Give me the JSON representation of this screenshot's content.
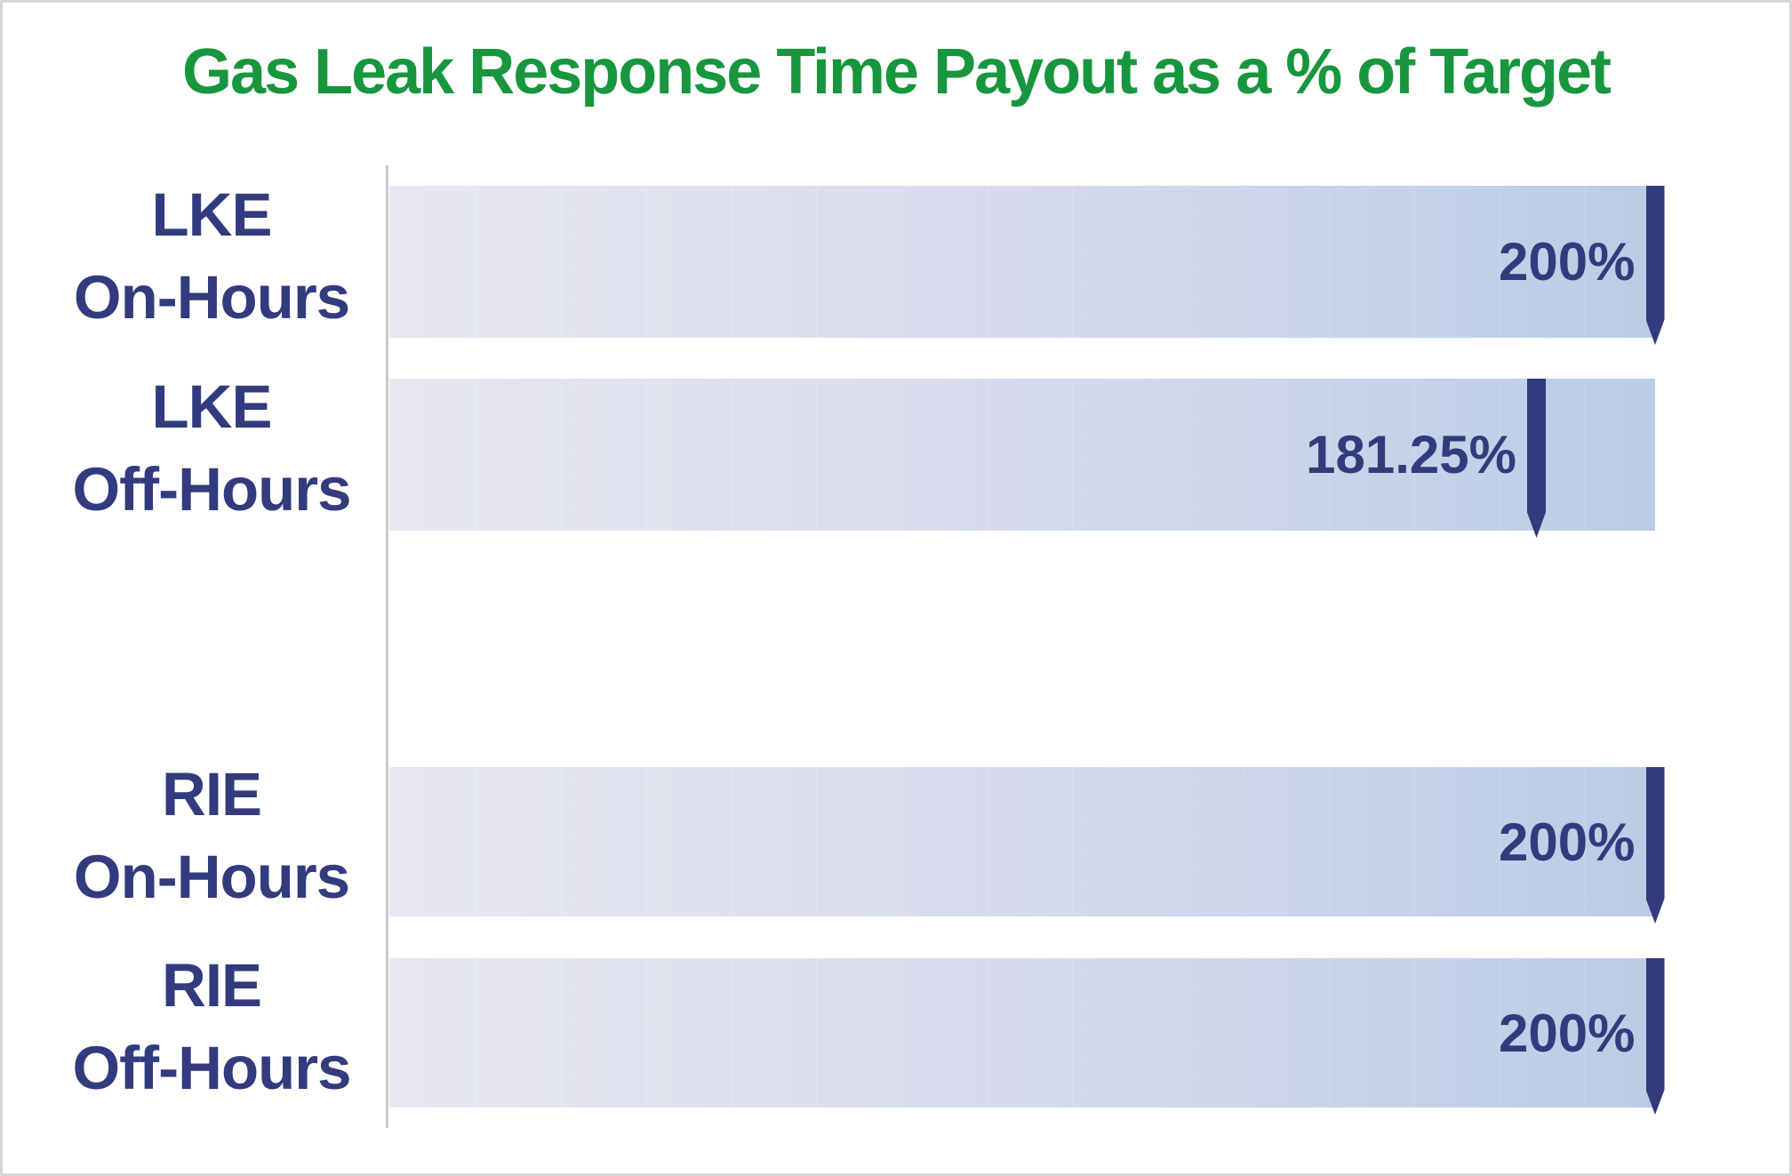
{
  "title": "Gas Leak Response Time Payout as a % of Target",
  "colors": {
    "title_green": "#17963e",
    "navy": "#323b7d",
    "bar_gradient_start": "#e9eaf3",
    "bar_gradient_end": "#bccee8",
    "axis_line": "#c9c9cd",
    "frame_border": "#d5d5d5"
  },
  "chart_data": {
    "type": "bar",
    "orientation": "horizontal",
    "title": "Gas Leak Response Time Payout as a % of Target",
    "xlabel": "",
    "ylabel": "",
    "xlim": [
      0,
      200
    ],
    "unit": "%",
    "gridlines": false,
    "legend": false,
    "track_style": "full-length gradient track with navy pin marker at value",
    "categories": [
      "LKE On-Hours",
      "LKE Off-Hours",
      "RIE On-Hours",
      "RIE Off-Hours"
    ],
    "values": [
      200,
      181.25,
      200,
      200
    ],
    "rows": [
      {
        "line1": "LKE",
        "line2": "On-Hours",
        "value": 200,
        "display": "200%"
      },
      {
        "line1": "LKE",
        "line2": "Off-Hours",
        "value": 181.25,
        "display": "181.25%"
      },
      {
        "line1": "RIE",
        "line2": "On-Hours",
        "value": 200,
        "display": "200%"
      },
      {
        "line1": "RIE",
        "line2": "Off-Hours",
        "value": 200,
        "display": "200%"
      }
    ]
  }
}
